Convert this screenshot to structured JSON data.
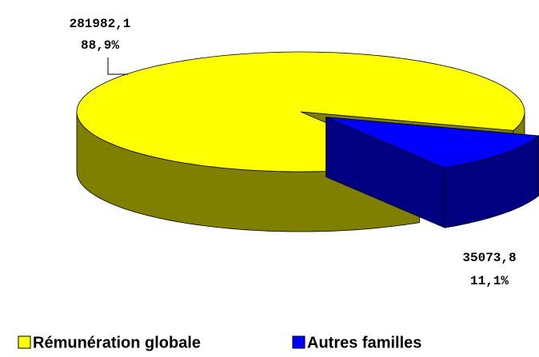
{
  "chart_data": {
    "type": "pie3d",
    "categories": [
      "Rémunération globale",
      "Autres familles"
    ],
    "values": [
      281982.1,
      35073.8
    ],
    "value_labels": [
      "281982,1",
      "35073,8"
    ],
    "percent_labels": [
      "88,9%",
      "11,1%"
    ],
    "colors": [
      "#ffff00",
      "#0000ff"
    ],
    "side_colors": [
      "#808000",
      "#000080"
    ],
    "explode": [
      false,
      true
    ],
    "legend": "bottom"
  }
}
